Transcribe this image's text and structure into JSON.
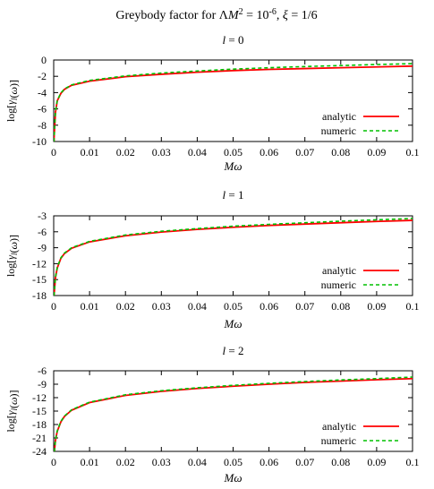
{
  "figure_title": {
    "pre": "Greybody factor for Λ",
    "M": "M",
    "sup2": "2",
    "eq": " = 10",
    "exp": "-6",
    "comma": ", ",
    "xi": "ξ",
    "post": " = 1/6"
  },
  "colors": {
    "analytic": "#ff0000",
    "numeric": "#00c000",
    "axis": "#000000"
  },
  "chart_data": [
    {
      "type": "line",
      "title": "l = 0",
      "xlabel": "Mω",
      "ylabel": "log[γl(ω)]",
      "xlim": [
        0,
        0.1
      ],
      "ylim": [
        -10,
        0
      ],
      "x_ticks": [
        0,
        0.01,
        0.02,
        0.03,
        0.04,
        0.05,
        0.06,
        0.07,
        0.08,
        0.09,
        0.1
      ],
      "x_tick_labels": [
        "0",
        "0.01",
        "0.02",
        "0.03",
        "0.04",
        "0.05",
        "0.06",
        "0.07",
        "0.08",
        "0.09",
        "0.1"
      ],
      "y_ticks": [
        -10,
        -8,
        -6,
        -4,
        -2,
        0
      ],
      "y_tick_labels": [
        "-10",
        "-8",
        "-6",
        "-4",
        "-2",
        "0"
      ],
      "legend_position": "bottom-right",
      "series": [
        {
          "name": "analytic",
          "style": "solid",
          "x": [
            0.0001,
            0.0005,
            0.001,
            0.002,
            0.003,
            0.005,
            0.01,
            0.02,
            0.03,
            0.04,
            0.05,
            0.06,
            0.07,
            0.08,
            0.09,
            0.1
          ],
          "y": [
            -9.6,
            -6.4,
            -5.0,
            -4.1,
            -3.6,
            -3.1,
            -2.6,
            -2.05,
            -1.75,
            -1.5,
            -1.3,
            -1.15,
            -1.05,
            -0.95,
            -0.85,
            -0.75
          ]
        },
        {
          "name": "numeric",
          "style": "dashed",
          "x": [
            0.0001,
            0.0005,
            0.001,
            0.002,
            0.003,
            0.005,
            0.01,
            0.02,
            0.03,
            0.04,
            0.05,
            0.06,
            0.07,
            0.08,
            0.09,
            0.1
          ],
          "y": [
            -9.6,
            -6.3,
            -4.95,
            -4.05,
            -3.55,
            -3.05,
            -2.5,
            -1.95,
            -1.6,
            -1.35,
            -1.12,
            -0.95,
            -0.8,
            -0.68,
            -0.55,
            -0.45
          ]
        }
      ]
    },
    {
      "type": "line",
      "title": "l = 1",
      "xlabel": "Mω",
      "ylabel": "log[γl(ω)]",
      "xlim": [
        0,
        0.1
      ],
      "ylim": [
        -18,
        -3
      ],
      "x_ticks": [
        0,
        0.01,
        0.02,
        0.03,
        0.04,
        0.05,
        0.06,
        0.07,
        0.08,
        0.09,
        0.1
      ],
      "x_tick_labels": [
        "0",
        "0.01",
        "0.02",
        "0.03",
        "0.04",
        "0.05",
        "0.06",
        "0.07",
        "0.08",
        "0.09",
        "0.1"
      ],
      "y_ticks": [
        -18,
        -15,
        -12,
        -9,
        -6,
        -3
      ],
      "y_tick_labels": [
        "-18",
        "-15",
        "-12",
        "-9",
        "-6",
        "-3"
      ],
      "legend_position": "bottom-right",
      "series": [
        {
          "name": "analytic",
          "style": "solid",
          "x": [
            0.0001,
            0.0005,
            0.001,
            0.002,
            0.003,
            0.005,
            0.01,
            0.02,
            0.03,
            0.04,
            0.05,
            0.06,
            0.07,
            0.08,
            0.09,
            0.1
          ],
          "y": [
            -18.0,
            -14.6,
            -12.8,
            -11.0,
            -10.1,
            -9.1,
            -7.9,
            -6.75,
            -6.05,
            -5.55,
            -5.15,
            -4.8,
            -4.55,
            -4.3,
            -4.05,
            -3.85
          ]
        },
        {
          "name": "numeric",
          "style": "dashed",
          "x": [
            0.0001,
            0.0005,
            0.001,
            0.002,
            0.003,
            0.005,
            0.01,
            0.02,
            0.03,
            0.04,
            0.05,
            0.06,
            0.07,
            0.08,
            0.09,
            0.1
          ],
          "y": [
            -18.0,
            -14.5,
            -12.7,
            -10.9,
            -10.0,
            -9.0,
            -7.8,
            -6.6,
            -5.9,
            -5.4,
            -4.95,
            -4.6,
            -4.3,
            -4.0,
            -3.75,
            -3.5
          ]
        }
      ]
    },
    {
      "type": "line",
      "title": "l = 2",
      "xlabel": "Mω",
      "ylabel": "log[γl(ω)]",
      "xlim": [
        0,
        0.1
      ],
      "ylim": [
        -24,
        -6
      ],
      "x_ticks": [
        0,
        0.01,
        0.02,
        0.03,
        0.04,
        0.05,
        0.06,
        0.07,
        0.08,
        0.09,
        0.1
      ],
      "x_tick_labels": [
        "0",
        "0.01",
        "0.02",
        "0.03",
        "0.04",
        "0.05",
        "0.06",
        "0.07",
        "0.08",
        "0.09",
        "0.1"
      ],
      "y_ticks": [
        -24,
        -21,
        -18,
        -15,
        -12,
        -9,
        -6
      ],
      "y_tick_labels": [
        "-24",
        "-21",
        "-18",
        "-15",
        "-12",
        "-9",
        "-6"
      ],
      "legend_position": "bottom-right",
      "series": [
        {
          "name": "analytic",
          "style": "solid",
          "x": [
            0.0002,
            0.0005,
            0.001,
            0.002,
            0.003,
            0.005,
            0.01,
            0.02,
            0.03,
            0.04,
            0.05,
            0.06,
            0.07,
            0.08,
            0.09,
            0.1
          ],
          "y": [
            -24.0,
            -21.5,
            -19.5,
            -17.4,
            -16.2,
            -14.8,
            -13.1,
            -11.5,
            -10.6,
            -9.95,
            -9.45,
            -9.0,
            -8.6,
            -8.3,
            -8.0,
            -7.75
          ]
        },
        {
          "name": "numeric",
          "style": "dashed",
          "x": [
            0.0002,
            0.0005,
            0.001,
            0.002,
            0.003,
            0.005,
            0.01,
            0.02,
            0.03,
            0.04,
            0.05,
            0.06,
            0.07,
            0.08,
            0.09,
            0.1
          ],
          "y": [
            -24.0,
            -21.4,
            -19.4,
            -17.3,
            -16.1,
            -14.7,
            -13.0,
            -11.35,
            -10.45,
            -9.8,
            -9.25,
            -8.8,
            -8.4,
            -8.05,
            -7.75,
            -7.4
          ]
        }
      ]
    }
  ]
}
